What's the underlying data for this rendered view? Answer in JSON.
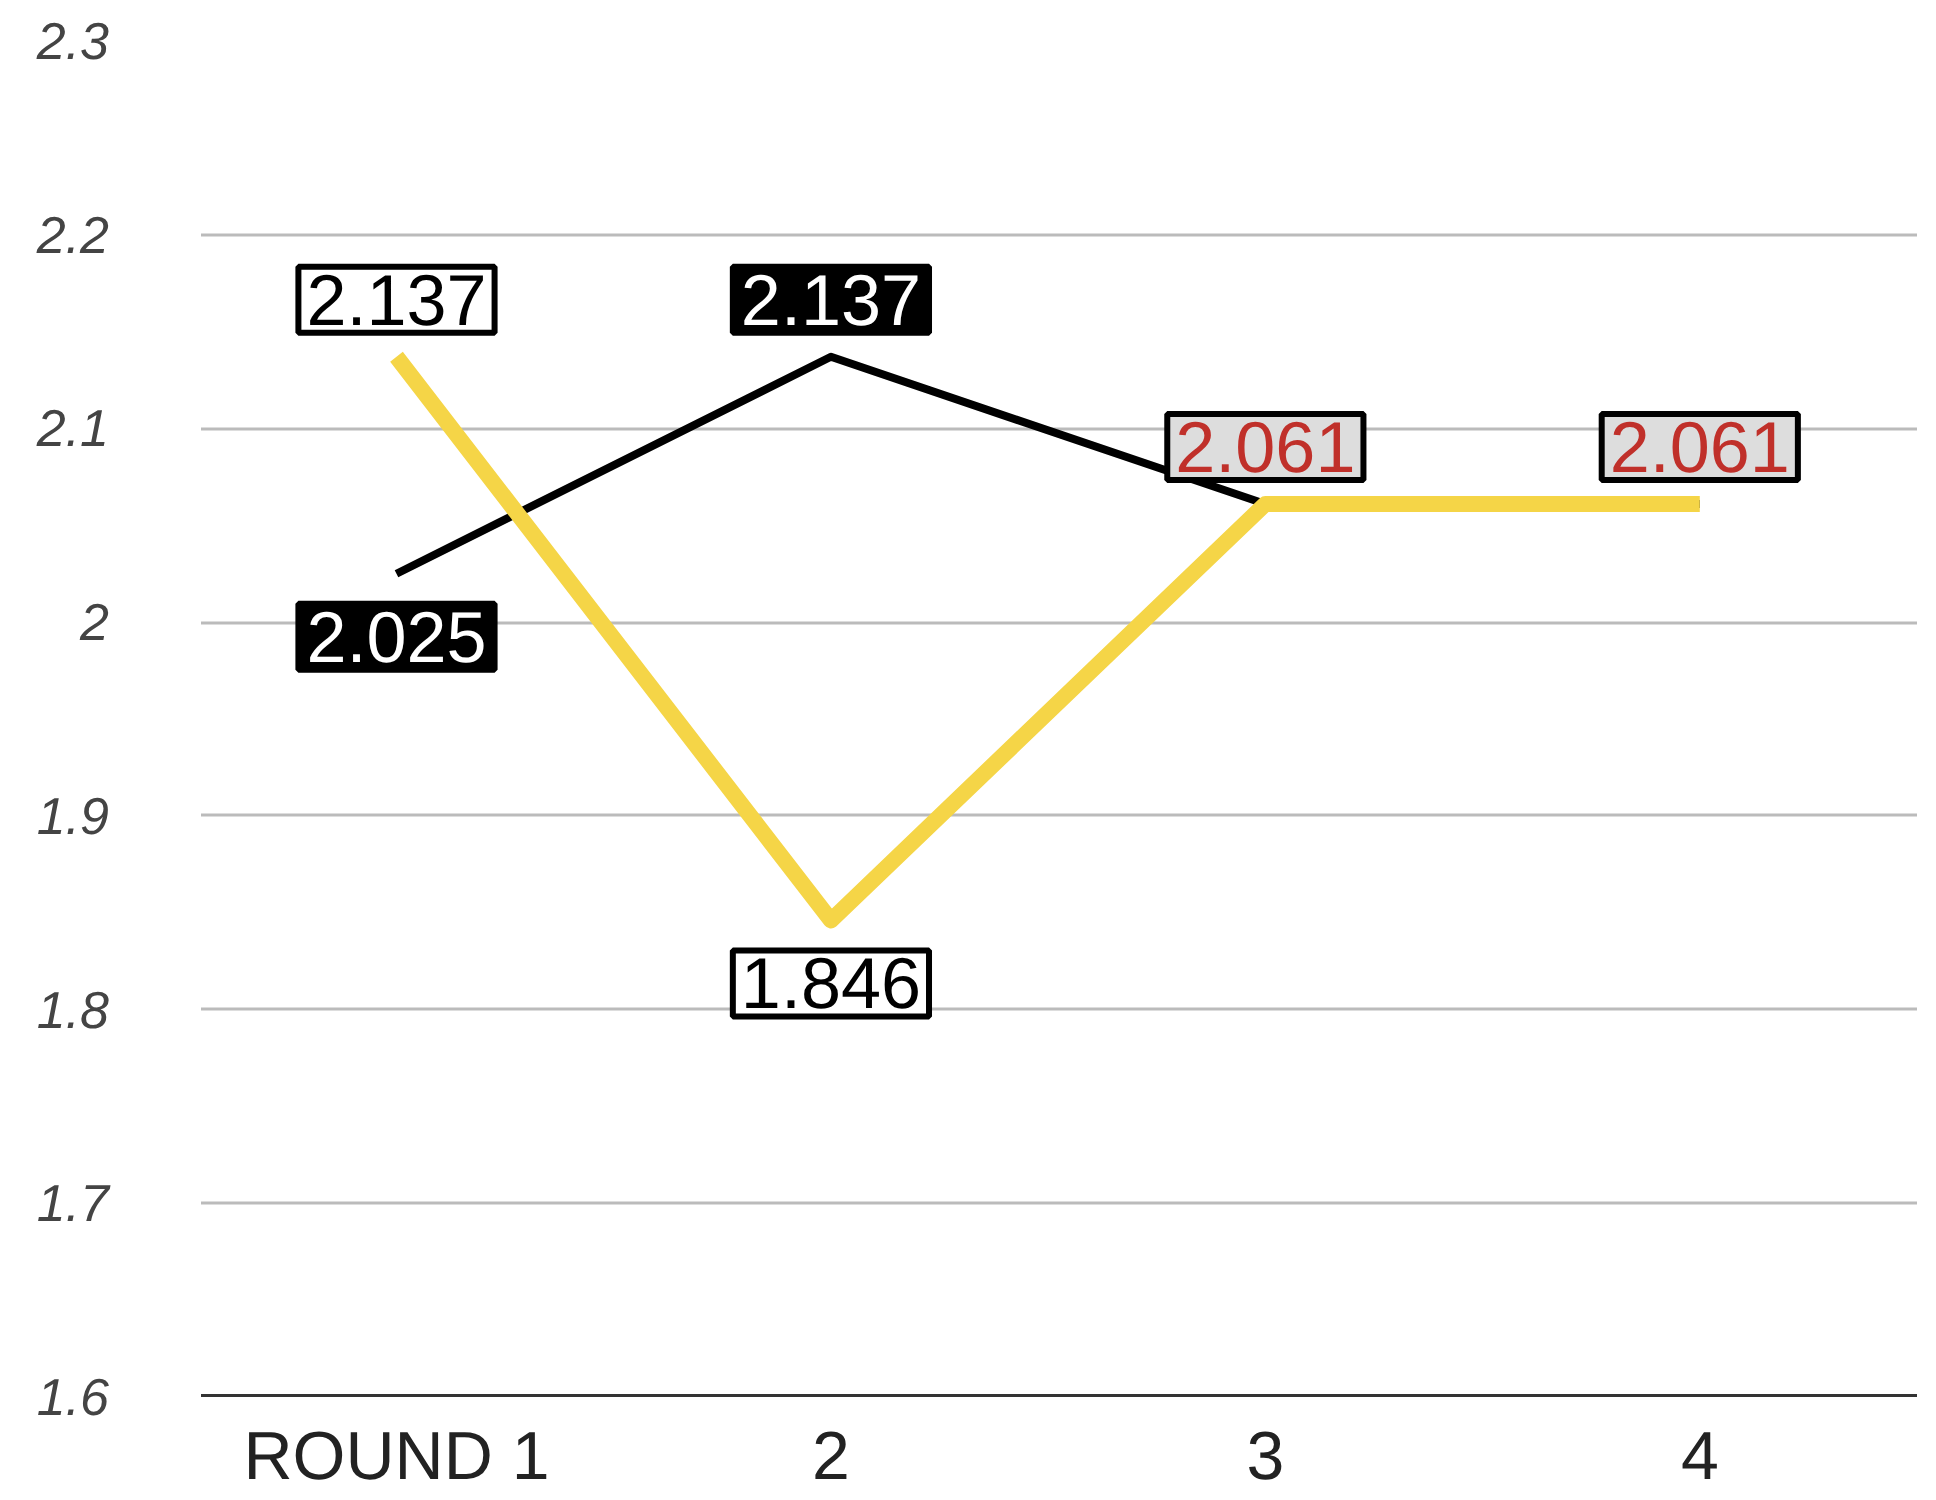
{
  "chart_data": {
    "type": "line",
    "categories": [
      "ROUND 1",
      "2",
      "3",
      "4"
    ],
    "series": [
      {
        "color": "#000000",
        "values": [
          2.025,
          2.137,
          2.061,
          2.061
        ],
        "value_labels": [
          "2.025",
          "2.137",
          null,
          null
        ]
      },
      {
        "color": "#f5d547",
        "values": [
          2.137,
          1.846,
          2.061,
          2.061
        ],
        "value_labels": [
          "2.137",
          "1.846",
          "2.061",
          "2.061"
        ]
      }
    ],
    "ylim": [
      1.6,
      2.3
    ],
    "yticks": [
      1.6,
      1.7,
      1.8,
      1.9,
      2,
      2.1,
      2.2,
      2.3
    ],
    "grid": "y",
    "line_style": "solid"
  }
}
